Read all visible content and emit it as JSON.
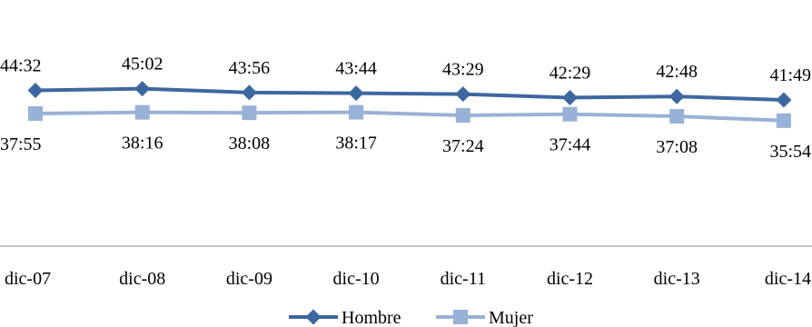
{
  "chart_data": {
    "type": "line",
    "categories": [
      "dic-07",
      "dic-08",
      "dic-09",
      "dic-10",
      "dic-11",
      "dic-12",
      "dic-13",
      "dic-14"
    ],
    "series": [
      {
        "name": "Hombre",
        "values": [
          "44:32",
          "45:02",
          "43:56",
          "43:44",
          "43:29",
          "42:29",
          "42:48",
          "41:49"
        ],
        "color": "#3d67a0",
        "marker": "diamond"
      },
      {
        "name": "Mujer",
        "values": [
          "37:55",
          "38:16",
          "38:08",
          "38:17",
          "37:24",
          "37:44",
          "37:08",
          "35:54"
        ],
        "color": "#98b1d6",
        "marker": "square"
      }
    ],
    "ylim_minutes": [
      0,
      60
    ],
    "grid": false,
    "legend": "bottom-center",
    "title": "",
    "xlabel": "",
    "ylabel": ""
  }
}
